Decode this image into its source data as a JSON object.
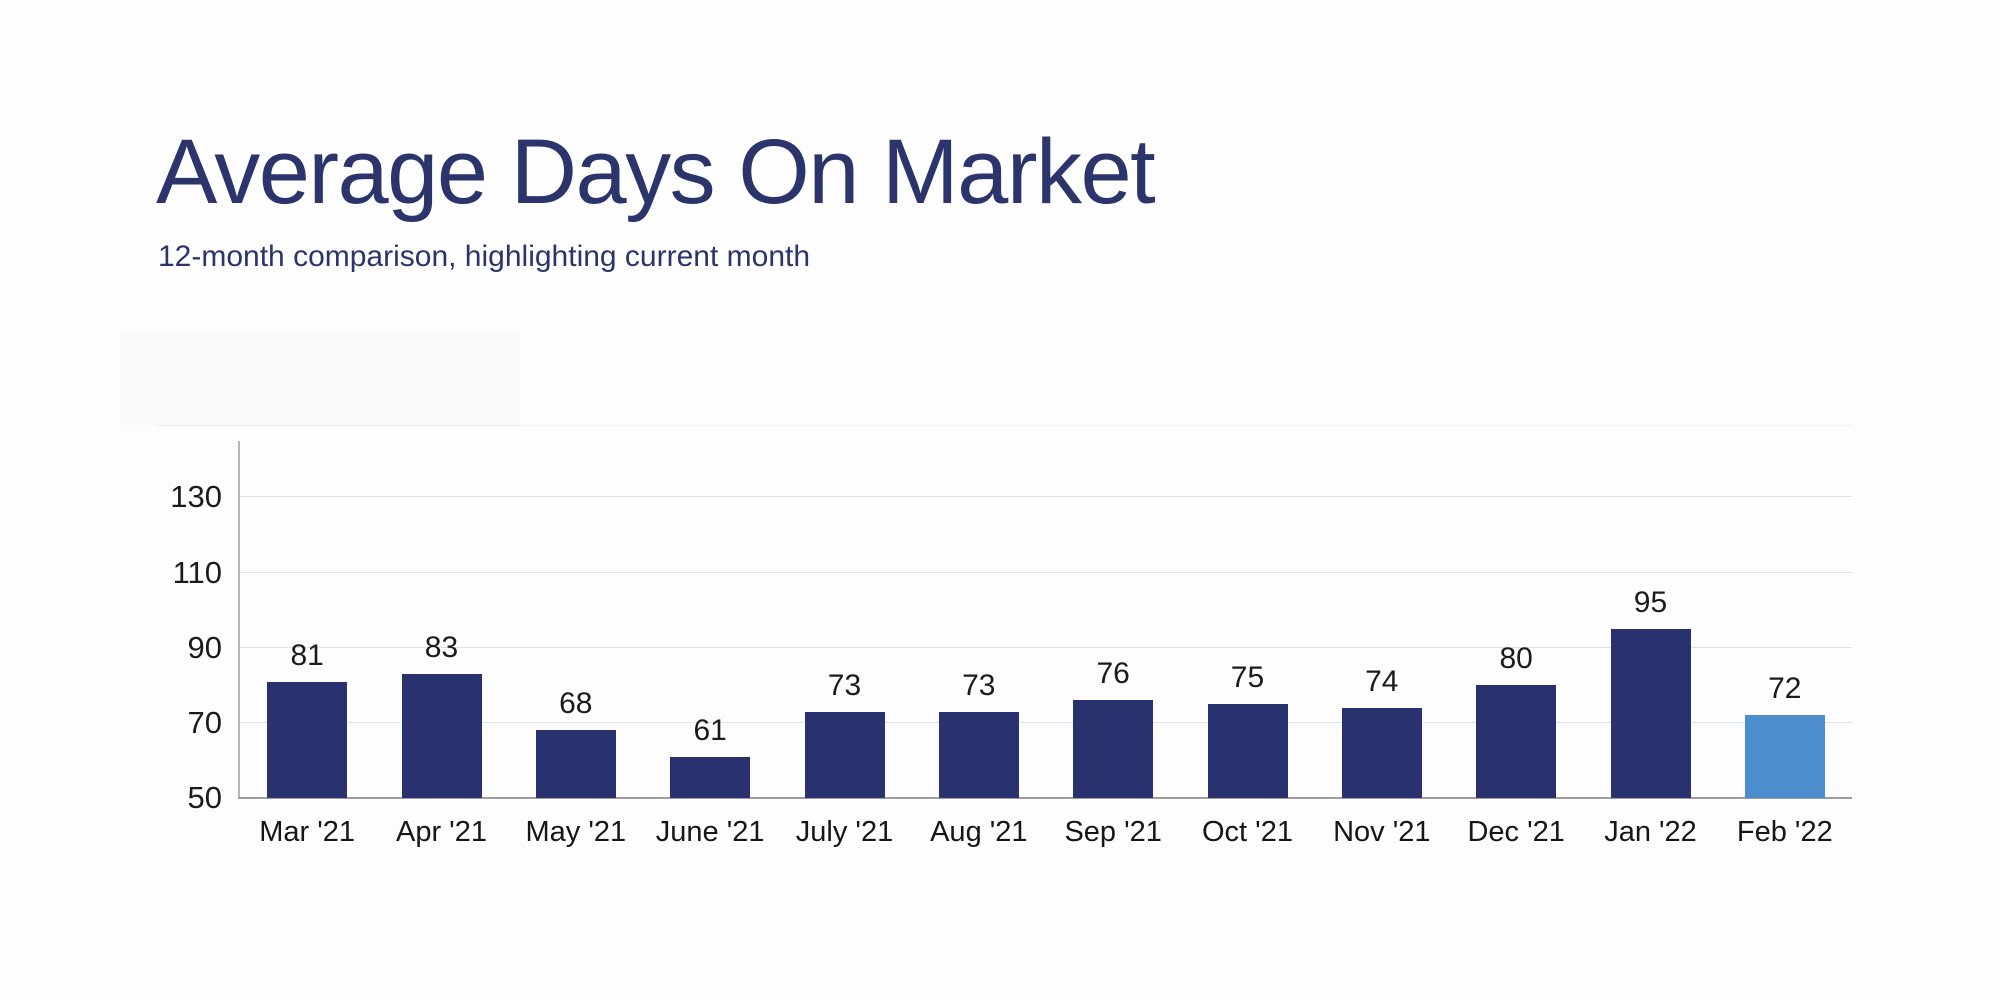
{
  "header": {
    "title": "Average Days On Market",
    "subtitle": "12-month comparison, highlighting current month",
    "text_color": "#2b356b"
  },
  "chart_data": {
    "type": "bar",
    "title": "Average Days On Market",
    "subtitle": "12-month comparison, highlighting current month",
    "categories": [
      "Mar '21",
      "Apr '21",
      "May '21",
      "June '21",
      "July '21",
      "Aug '21",
      "Sep '21",
      "Oct '21",
      "Nov '21",
      "Dec '21",
      "Jan '22",
      "Feb '22"
    ],
    "values": [
      81,
      83,
      68,
      61,
      73,
      73,
      76,
      75,
      74,
      80,
      95,
      72
    ],
    "highlight_index": 11,
    "highlight_meaning": "current month",
    "data_labels": [
      81,
      83,
      68,
      61,
      73,
      73,
      76,
      75,
      74,
      80,
      95,
      72
    ],
    "xlabel": "",
    "ylabel": "",
    "y_ticks": [
      50,
      70,
      90,
      110,
      130
    ],
    "ylim": [
      50,
      145
    ],
    "grid": true,
    "legend": "none",
    "colors": {
      "bar": "#2a316f",
      "highlight_bar": "#4e8ecf",
      "gridline": "#dce3f0",
      "baseline_axis": "#9e9e9e",
      "y_axis_line": "#b6b6b6",
      "tick_text": "#1b1b1b"
    }
  }
}
